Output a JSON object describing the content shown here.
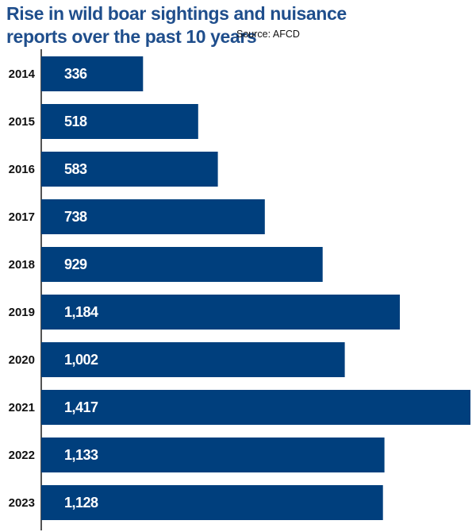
{
  "title_lines": [
    "Rise in wild boar sightings and nuisance",
    "reports over the past 10 years"
  ],
  "source": "Source: AFCD",
  "colors": {
    "bar": "#003f7d",
    "title": "#1f4e8c",
    "axis": "#1a1a1a"
  },
  "chart_data": {
    "type": "bar",
    "orientation": "horizontal",
    "title": "Rise in wild boar sightings and nuisance reports over the past 10 years",
    "categories": [
      "2014",
      "2015",
      "2016",
      "2017",
      "2018",
      "2019",
      "2020",
      "2021",
      "2022",
      "2023"
    ],
    "values": [
      336,
      518,
      583,
      738,
      929,
      1184,
      1002,
      1417,
      1133,
      1128
    ],
    "value_labels": [
      "336",
      "518",
      "583",
      "738",
      "929",
      "1,184",
      "1,002",
      "1,417",
      "1,133",
      "1,128"
    ],
    "xlabel": "",
    "ylabel": "",
    "xlim": [
      0,
      1417
    ],
    "grid": false,
    "legend": "none"
  }
}
